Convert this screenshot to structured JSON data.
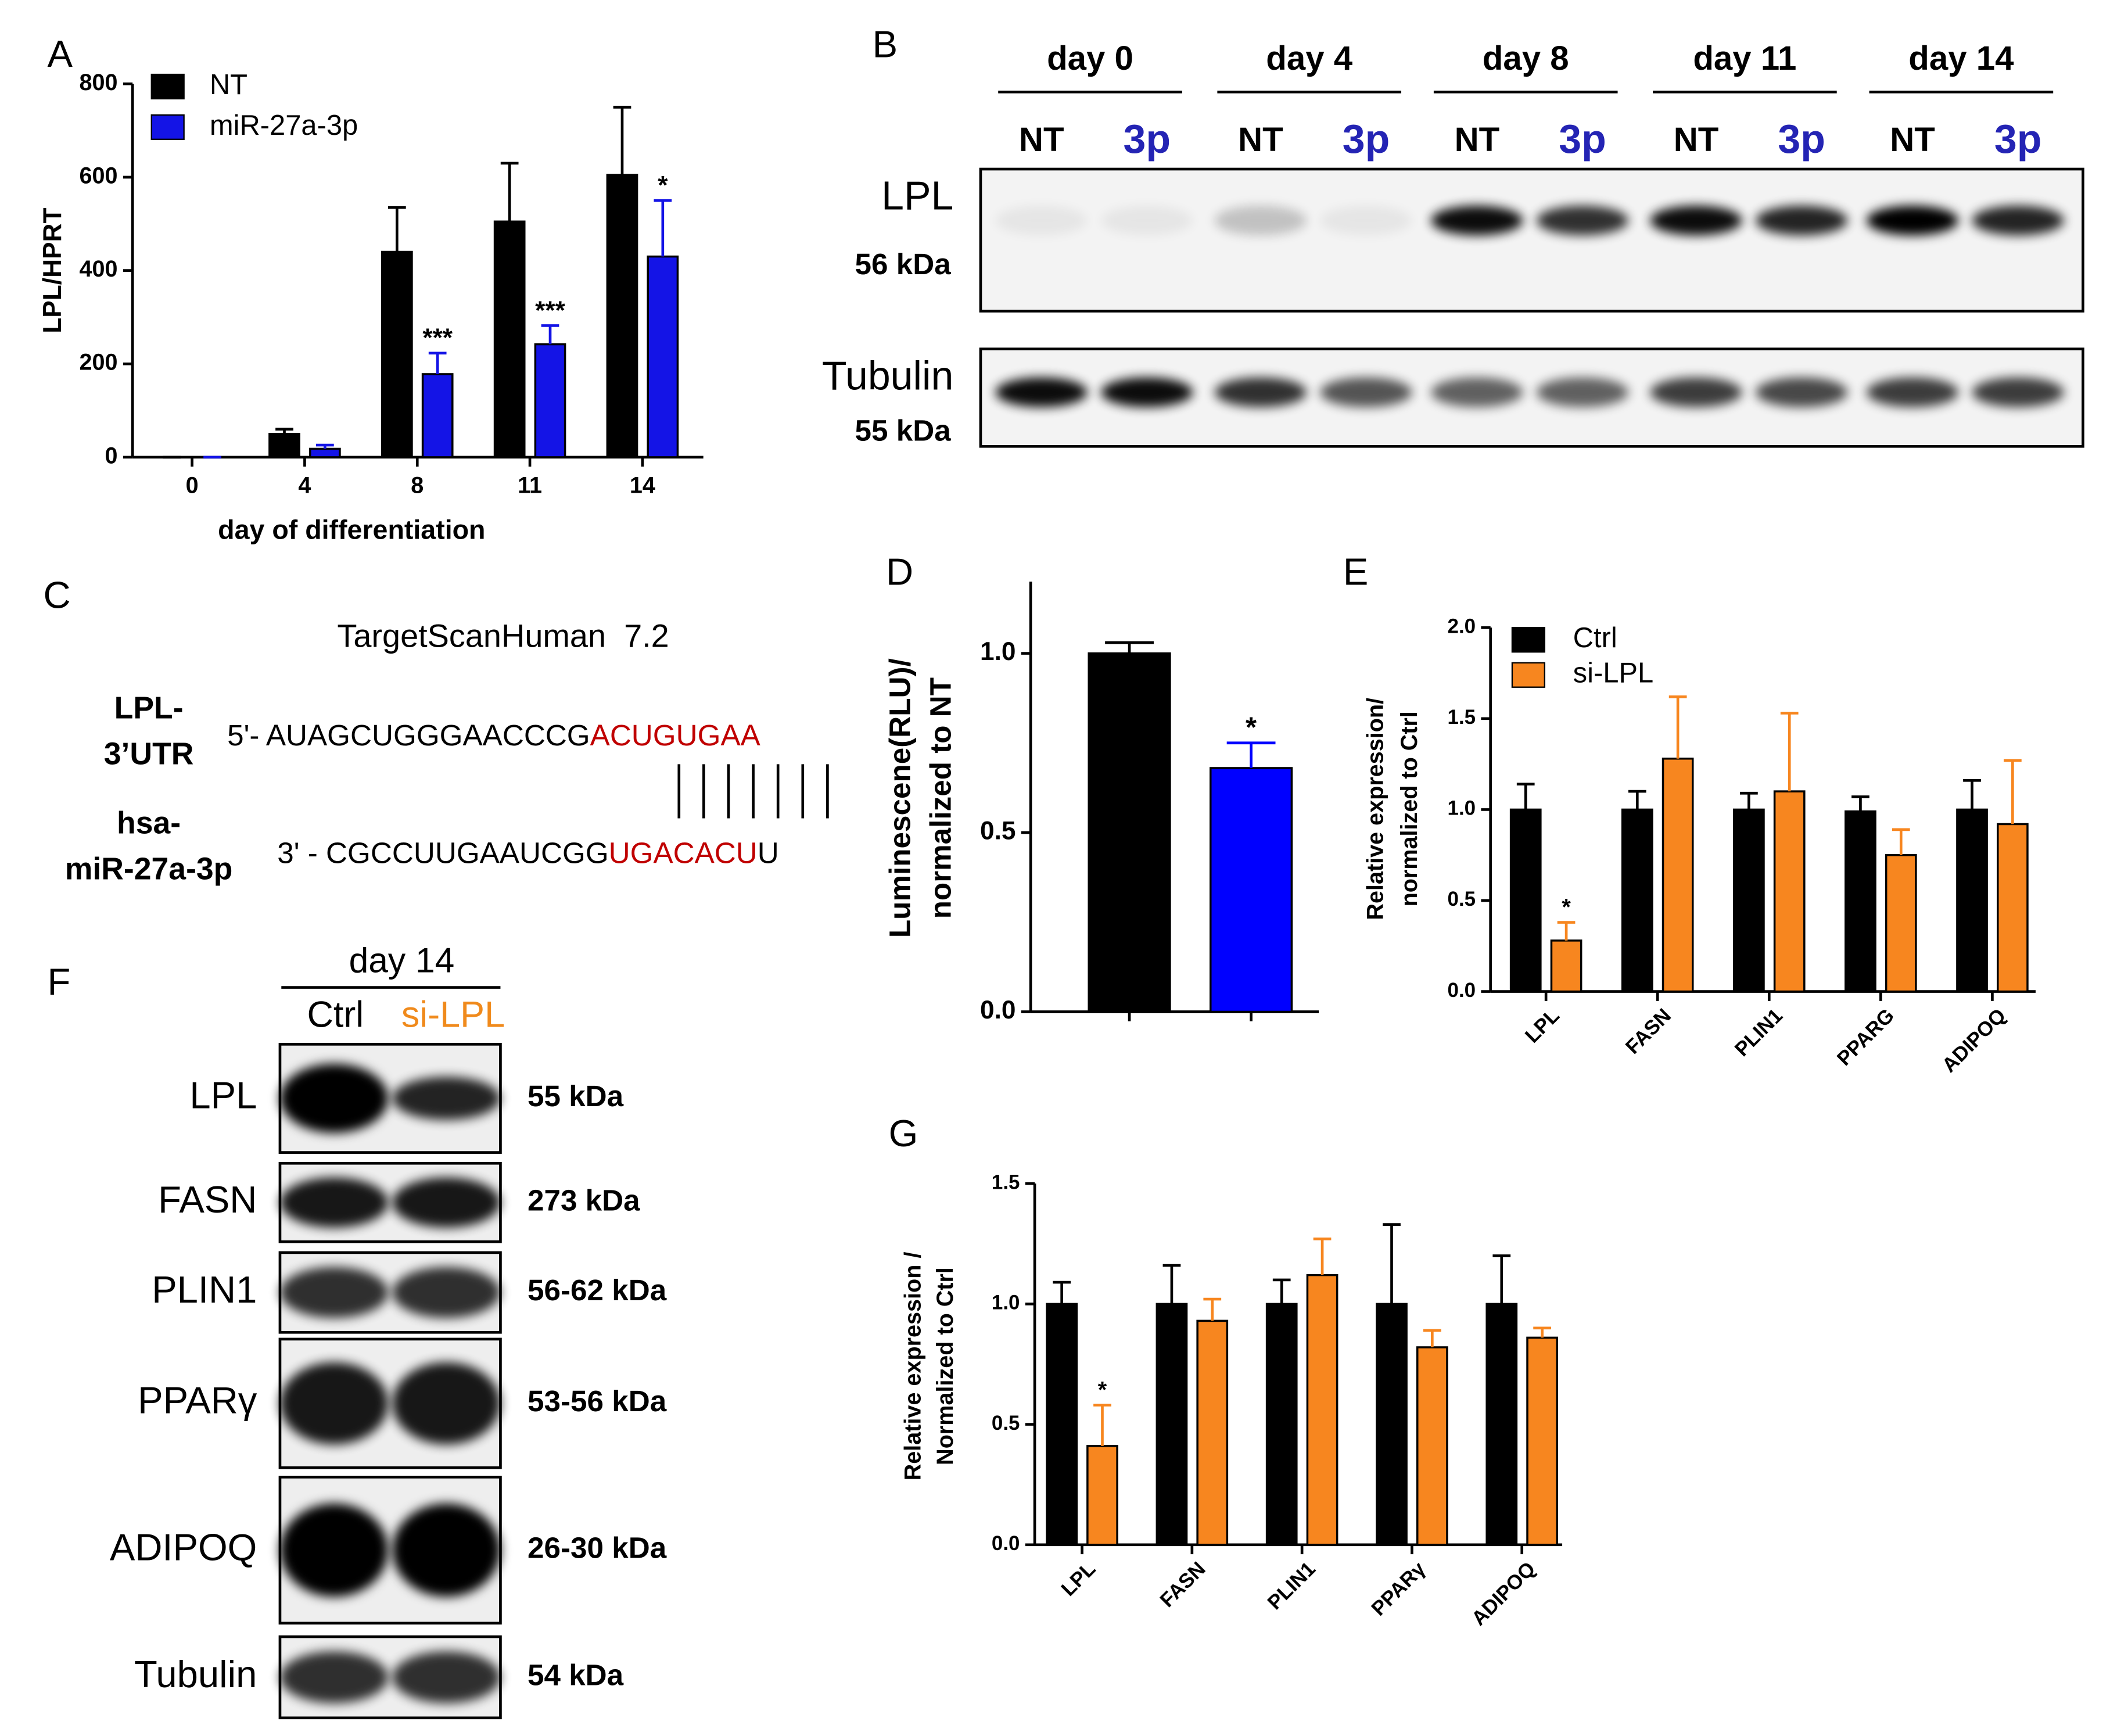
{
  "chart_data": [
    {
      "type": "bar",
      "panel": "A",
      "ylabel": "LPL/HPRT",
      "xlabel": "day of differentiation",
      "categories": [
        "0",
        "4",
        "8",
        "11",
        "14"
      ],
      "series": [
        {
          "name": "NT",
          "color": "#000000",
          "values": [
            0,
            50,
            440,
            505,
            605
          ],
          "errors": [
            0,
            10,
            95,
            125,
            145
          ]
        },
        {
          "name": "miR-27a-3p",
          "color": "#1414e6",
          "values": [
            0,
            18,
            178,
            242,
            430
          ],
          "errors": [
            0,
            8,
            45,
            40,
            120
          ],
          "annotations": [
            null,
            null,
            "***",
            "***",
            "*"
          ]
        }
      ],
      "ylim": [
        0,
        800
      ],
      "yticks": [
        0,
        200,
        400,
        600,
        800
      ],
      "legend": "top-left"
    },
    {
      "type": "bar",
      "panel": "D",
      "ylabel": [
        "Luminescene(RLU)/",
        "normalized to NT"
      ],
      "categories": [
        null,
        null
      ],
      "values": [
        1.0,
        0.68
      ],
      "errors": [
        0.03,
        0.07
      ],
      "colors": [
        "#000000",
        "#0000ff"
      ],
      "annotations": [
        null,
        "*"
      ],
      "ylim": [
        0,
        1.2
      ],
      "yticks": [
        {
          "value": 0,
          "label": "0.0"
        },
        {
          "value": 0.5,
          "label": "0.5"
        },
        {
          "value": 1,
          "label": "1.0"
        }
      ]
    },
    {
      "type": "bar",
      "panel": "E",
      "ylabel": [
        "Relative expression/",
        "normalized to Ctrl"
      ],
      "categories": [
        "LPL",
        "FASN",
        "PLIN1",
        "PPARG",
        "ADIPOQ"
      ],
      "series": [
        {
          "name": "Ctrl",
          "color": "#000000",
          "values": [
            1.0,
            1.0,
            1.0,
            0.99,
            1.0
          ],
          "errors": [
            0.14,
            0.1,
            0.09,
            0.08,
            0.16
          ]
        },
        {
          "name": "si-LPL",
          "color": "#f7861f",
          "values": [
            0.28,
            1.28,
            1.1,
            0.75,
            0.92
          ],
          "errors": [
            0.1,
            0.34,
            0.43,
            0.14,
            0.35
          ],
          "annotations": [
            "*",
            null,
            null,
            null,
            null
          ]
        }
      ],
      "ylim": [
        0,
        2.0
      ],
      "yticks": [
        {
          "value": 0,
          "label": "0.0"
        },
        {
          "value": 0.5,
          "label": "0.5"
        },
        {
          "value": 1,
          "label": "1.0"
        },
        {
          "value": 1.5,
          "label": "1.5"
        },
        {
          "value": 2,
          "label": "2.0"
        }
      ],
      "legend": "top-left"
    },
    {
      "type": "bar",
      "panel": "G",
      "ylabel": [
        "Relative expression /",
        "Normalized to Ctrl"
      ],
      "categories": [
        "LPL",
        "FASN",
        "PLIN1",
        "PPARγ",
        "ADIPOQ"
      ],
      "series": [
        {
          "name": "Ctrl",
          "color": "#000000",
          "values": [
            1.0,
            1.0,
            1.0,
            1.0,
            1.0
          ],
          "errors": [
            0.09,
            0.16,
            0.1,
            0.33,
            0.2
          ]
        },
        {
          "name": "si-LPL",
          "color": "#f7861f",
          "values": [
            0.41,
            0.93,
            1.12,
            0.82,
            0.86
          ],
          "errors": [
            0.17,
            0.09,
            0.15,
            0.07,
            0.04
          ],
          "annotations": [
            "*",
            null,
            null,
            null,
            null
          ]
        }
      ],
      "ylim": [
        0,
        1.5
      ],
      "yticks": [
        {
          "value": 0,
          "label": "0.0"
        },
        {
          "value": 0.5,
          "label": "0.5"
        },
        {
          "value": 1,
          "label": "1.0"
        },
        {
          "value": 1.5,
          "label": "1.5"
        }
      ]
    }
  ],
  "panel_b": {
    "label": "B",
    "days": [
      "day 0",
      "day 4",
      "day 8",
      "day 11",
      "day 14"
    ],
    "lanes": [
      "NT",
      "3p"
    ],
    "blots": [
      {
        "name": "LPL",
        "size": "56 kDa"
      },
      {
        "name": "Tubulin",
        "size": "55 kDa"
      }
    ]
  },
  "panel_c": {
    "label": "C",
    "title": "TargetScanHuman  7.2",
    "target": {
      "name": [
        "LPL-",
        "3’UTR"
      ],
      "prefix": "5'- AUAGCUGGGAACCCG",
      "seed": "ACUGUGAA"
    },
    "mirna": {
      "name": [
        "hsa-",
        "miR-27a-3p"
      ],
      "prefix": "3' - CGCCUUGAAUCGG",
      "seed": "UGACACU",
      "suffix": "U"
    }
  },
  "panel_f": {
    "label": "F",
    "day": "day 14",
    "lanes": [
      "Ctrl",
      "si-LPL"
    ],
    "blots": [
      {
        "name": "LPL",
        "size": "55 kDa"
      },
      {
        "name": "FASN",
        "size": "273 kDa"
      },
      {
        "name": "PLIN1",
        "size": "56-62 kDa"
      },
      {
        "name": "PPARγ",
        "size": "53-56 kDa"
      },
      {
        "name": "ADIPOQ",
        "size": "26-30 kDa"
      },
      {
        "name": "Tubulin",
        "size": "54 kDa"
      }
    ]
  }
}
